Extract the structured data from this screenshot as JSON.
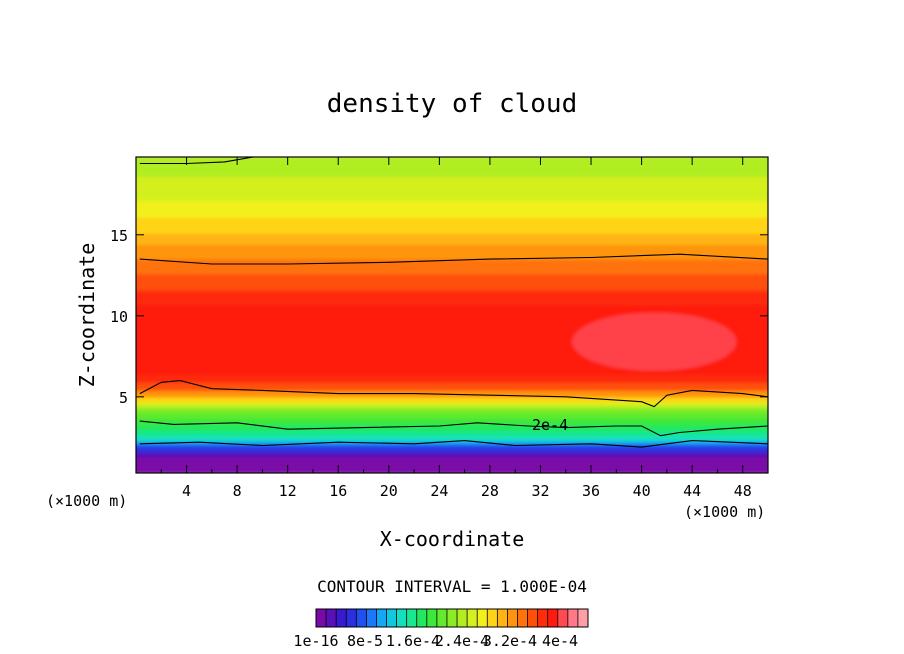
{
  "chart_data": {
    "type": "heatmap",
    "title": "density of cloud",
    "xlabel": "X-coordinate",
    "ylabel": "Z-coordinate",
    "x_unit_left": "(×1000 m)",
    "x_unit_right": "(×1000 m)",
    "xlim": [
      0,
      50
    ],
    "ylim": [
      0.3,
      19.8
    ],
    "x_ticks": [
      "4",
      "8",
      "12",
      "16",
      "20",
      "24",
      "28",
      "32",
      "36",
      "40",
      "44",
      "48"
    ],
    "y_ticks": [
      "5",
      "10",
      "15"
    ],
    "contour_interval_text": "CONTOUR INTERVAL = 1.000E-04",
    "contour_label": "2e-4",
    "colorbar_labels": [
      "1e-16",
      "8e-5",
      "1.6e-4",
      "2.4e-4",
      "3.2e-4",
      "4e-4"
    ],
    "colors": [
      "#7a0aa8",
      "#5a10b8",
      "#3a1ad0",
      "#2a30e0",
      "#2050f0",
      "#1c78f8",
      "#12a8f2",
      "#12c8e0",
      "#14e0c0",
      "#18e890",
      "#20e860",
      "#3ce83c",
      "#62ea2c",
      "#8aec26",
      "#b0ee22",
      "#d4f01e",
      "#f2f01a",
      "#ffd418",
      "#ffb414",
      "#ff9410",
      "#ff720c",
      "#ff500a",
      "#ff2c0a",
      "#ff1a10",
      "#ff4a52",
      "#ff7a86",
      "#ff9ea6"
    ],
    "level_bands": [
      {
        "z": 19.8,
        "level": 14
      },
      {
        "z": 18.5,
        "level": 15
      },
      {
        "z": 17.0,
        "level": 16
      },
      {
        "z": 16.0,
        "level": 17
      },
      {
        "z": 15.0,
        "level": 18
      },
      {
        "z": 14.3,
        "level": 19
      },
      {
        "z": 13.4,
        "level": 20
      },
      {
        "z": 12.5,
        "level": 21
      },
      {
        "z": 11.5,
        "level": 22
      },
      {
        "z": 10.6,
        "level": 23
      },
      {
        "z": 6.3,
        "level": 22
      },
      {
        "z": 5.8,
        "level": 21
      },
      {
        "z": 5.3,
        "level": 19
      },
      {
        "z": 4.9,
        "level": 17
      },
      {
        "z": 4.6,
        "level": 15
      },
      {
        "z": 4.3,
        "level": 13
      },
      {
        "z": 4.0,
        "level": 12
      },
      {
        "z": 3.6,
        "level": 11
      },
      {
        "z": 3.2,
        "level": 10
      },
      {
        "z": 2.8,
        "level": 9
      },
      {
        "z": 2.5,
        "level": 8
      },
      {
        "z": 2.2,
        "level": 6
      },
      {
        "z": 2.0,
        "level": 4
      },
      {
        "z": 1.8,
        "level": 3
      },
      {
        "z": 1.5,
        "level": 1
      },
      {
        "z": 1.2,
        "level": 0
      }
    ],
    "peak_region": {
      "x_center": 41,
      "z_center": 8.4,
      "x_radius": 6.5,
      "z_radius": 1.8,
      "level": 24
    },
    "top_contour": [
      [
        0.3,
        19.4
      ],
      [
        4,
        19.4
      ],
      [
        7,
        19.5
      ],
      [
        10,
        19.9
      ]
    ],
    "upper_contour": [
      [
        0.3,
        13.5
      ],
      [
        6,
        13.2
      ],
      [
        12,
        13.2
      ],
      [
        20,
        13.3
      ],
      [
        28,
        13.5
      ],
      [
        36,
        13.6
      ],
      [
        43,
        13.8
      ],
      [
        50,
        13.5
      ]
    ],
    "mid_contour": [
      [
        0.3,
        5.2
      ],
      [
        2,
        5.9
      ],
      [
        3.5,
        6.0
      ],
      [
        6,
        5.5
      ],
      [
        10,
        5.4
      ],
      [
        16,
        5.2
      ],
      [
        22,
        5.2
      ],
      [
        28,
        5.1
      ],
      [
        34,
        5.0
      ],
      [
        38,
        4.8
      ],
      [
        40,
        4.7
      ],
      [
        41,
        4.4
      ],
      [
        42,
        5.1
      ],
      [
        44,
        5.4
      ],
      [
        48,
        5.2
      ],
      [
        50,
        5.0
      ]
    ],
    "lower_contour": [
      [
        0.3,
        3.5
      ],
      [
        3,
        3.3
      ],
      [
        8,
        3.4
      ],
      [
        12,
        3.0
      ],
      [
        18,
        3.1
      ],
      [
        24,
        3.2
      ],
      [
        27,
        3.4
      ],
      [
        31,
        3.2
      ],
      [
        34,
        3.1
      ],
      [
        38,
        3.2
      ],
      [
        40,
        3.2
      ],
      [
        41.5,
        2.6
      ],
      [
        43,
        2.8
      ],
      [
        46,
        3.0
      ],
      [
        50,
        3.2
      ]
    ],
    "base_contour": [
      [
        0.3,
        2.1
      ],
      [
        5,
        2.2
      ],
      [
        10,
        2.0
      ],
      [
        16,
        2.2
      ],
      [
        22,
        2.1
      ],
      [
        26,
        2.3
      ],
      [
        30,
        2.0
      ],
      [
        36,
        2.1
      ],
      [
        40,
        1.9
      ],
      [
        44,
        2.3
      ],
      [
        50,
        2.1
      ]
    ]
  }
}
